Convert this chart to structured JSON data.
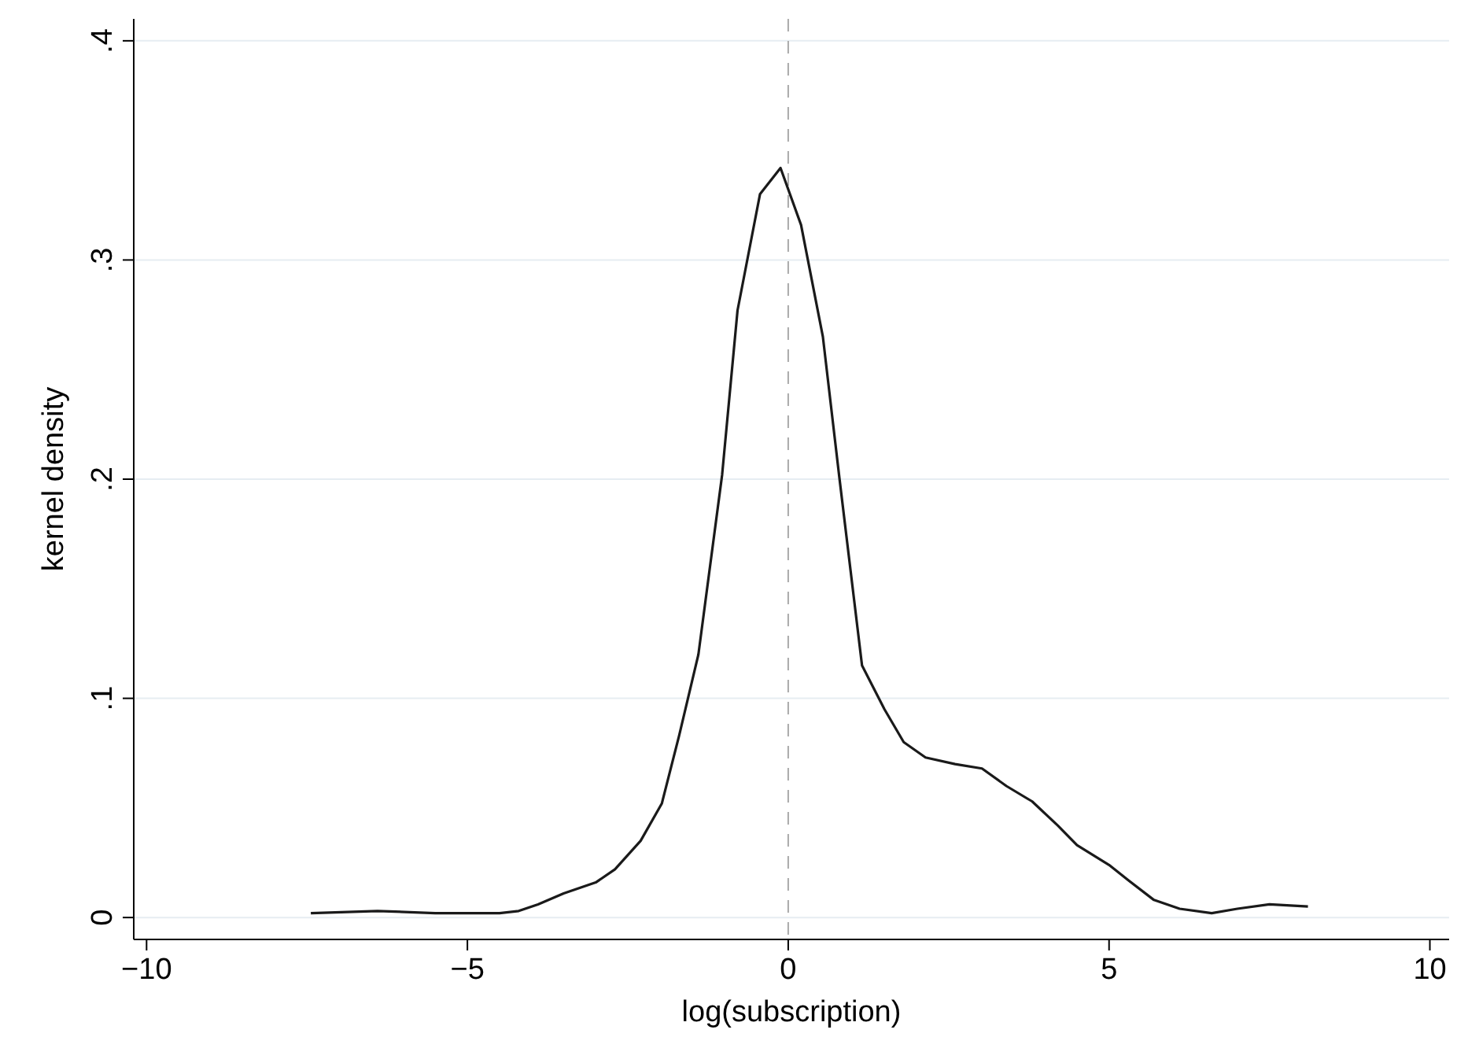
{
  "chart_data": {
    "type": "line",
    "xlabel": "log(subscription)",
    "ylabel": "kernel density",
    "x": [
      -7.44,
      -6.4,
      -5.5,
      -4.5,
      -4.2,
      -3.9,
      -3.5,
      -3.0,
      -2.7,
      -2.3,
      -1.97,
      -1.7,
      -1.4,
      -1.03,
      -0.79,
      -0.44,
      -0.12,
      0.2,
      0.54,
      0.8,
      1.15,
      1.5,
      1.8,
      2.14,
      2.6,
      3.02,
      3.4,
      3.8,
      4.2,
      4.5,
      5.0,
      5.3,
      5.7,
      6.1,
      6.6,
      7.0,
      7.5,
      8.1
    ],
    "series": [
      {
        "color": "#1a1a1a",
        "values": [
          0.002,
          0.003,
          0.002,
          0.002,
          0.003,
          0.006,
          0.011,
          0.016,
          0.022,
          0.035,
          0.052,
          0.083,
          0.12,
          0.202,
          0.277,
          0.33,
          0.342,
          0.316,
          0.265,
          0.2,
          0.115,
          0.095,
          0.08,
          0.073,
          0.07,
          0.068,
          0.06,
          0.053,
          0.042,
          0.033,
          0.024,
          0.017,
          0.008,
          0.004,
          0.002,
          0.004,
          0.006,
          0.005
        ]
      }
    ],
    "xlim": [
      -10.2,
      10.3
    ],
    "ylim": [
      -0.01,
      0.41
    ],
    "xticks": [
      {
        "value": -10,
        "label": "−10"
      },
      {
        "value": -5,
        "label": "−5"
      },
      0,
      5,
      10
    ],
    "yticks": [
      0,
      {
        "value": 0.1,
        "label": ".1"
      },
      {
        "value": 0.2,
        "label": ".2"
      },
      {
        "value": 0.3,
        "label": ".3"
      },
      {
        "value": 0.4,
        "label": ".4"
      }
    ],
    "grid": "y",
    "marker": "none",
    "line_style": "solid",
    "ref_lines": [
      {
        "axis": "x",
        "value": 0,
        "color": "#aaaaaa",
        "line_style": "dashed"
      }
    ]
  }
}
